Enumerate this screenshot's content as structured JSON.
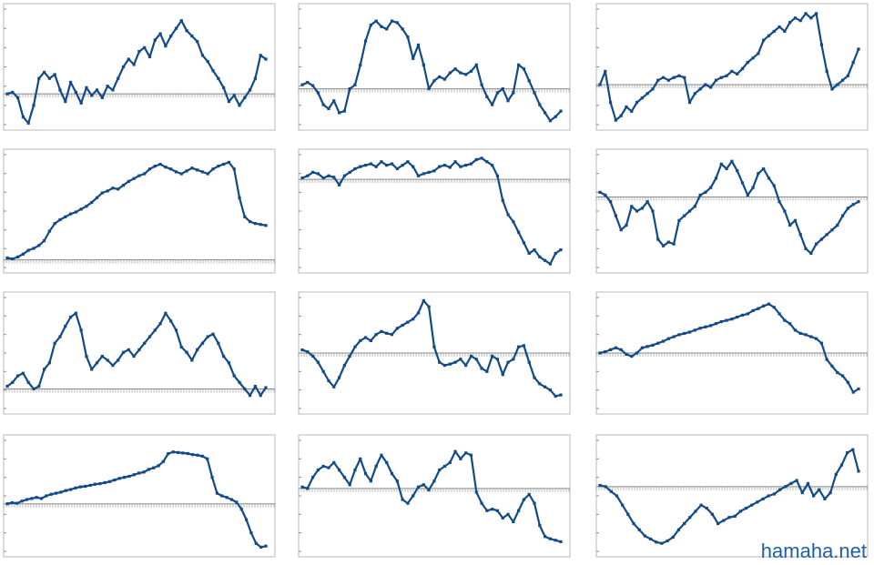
{
  "meta": {
    "watermark": "hamaha.net"
  },
  "style": {
    "line_color": "#124a87",
    "frame_color": "#b8b8b8",
    "axis_color": "#8c8c8c"
  },
  "chart_data": [
    {
      "type": "line",
      "title": "",
      "baseline": 0,
      "ylim": [
        -0.4,
        1.1
      ],
      "values": [
        0,
        0.02,
        -0.05,
        -0.3,
        -0.38,
        -0.15,
        0.2,
        0.28,
        0.2,
        0.25,
        0.05,
        -0.1,
        0.15,
        0.02,
        -0.12,
        0.08,
        -0.02,
        0.05,
        -0.05,
        0.1,
        0.05,
        0.2,
        0.35,
        0.45,
        0.38,
        0.55,
        0.6,
        0.48,
        0.7,
        0.78,
        0.62,
        0.75,
        0.85,
        0.95,
        0.82,
        0.75,
        0.68,
        0.5,
        0.42,
        0.3,
        0.2,
        0.08,
        -0.1,
        -0.02,
        -0.15,
        -0.05,
        0.05,
        0.2,
        0.5,
        0.45
      ]
    },
    {
      "type": "line",
      "title": "",
      "baseline": 0,
      "ylim": [
        -0.45,
        1.0
      ],
      "values": [
        0.05,
        0.08,
        0.04,
        -0.05,
        -0.2,
        -0.25,
        -0.15,
        -0.3,
        -0.28,
        0,
        0.05,
        0.3,
        0.6,
        0.8,
        0.85,
        0.78,
        0.75,
        0.85,
        0.83,
        0.75,
        0.65,
        0.38,
        0.55,
        0.3,
        0,
        0.1,
        0.15,
        0.12,
        0.2,
        0.25,
        0.2,
        0.18,
        0.22,
        0.3,
        0.05,
        -0.1,
        -0.2,
        -0.05,
        0,
        -0.15,
        -0.05,
        0.3,
        0.25,
        0.1,
        -0.05,
        -0.2,
        -0.3,
        -0.4,
        -0.35,
        -0.28
      ]
    },
    {
      "type": "line",
      "title": "",
      "baseline": 0,
      "ylim": [
        -0.45,
        0.85
      ],
      "values": [
        0,
        0.15,
        -0.2,
        -0.4,
        -0.35,
        -0.25,
        -0.3,
        -0.2,
        -0.15,
        -0.1,
        -0.05,
        0.05,
        0.08,
        0.05,
        0.08,
        0.1,
        0.08,
        -0.2,
        -0.1,
        -0.05,
        0,
        -0.03,
        0.05,
        0.08,
        0.1,
        0.15,
        0.12,
        0.18,
        0.25,
        0.3,
        0.35,
        0.5,
        0.55,
        0.6,
        0.65,
        0.6,
        0.7,
        0.75,
        0.72,
        0.8,
        0.75,
        0.8,
        0.45,
        0.15,
        -0.05,
        0,
        0.05,
        0.1,
        0.25,
        0.4
      ]
    },
    {
      "type": "line",
      "title": "",
      "baseline": 0,
      "ylim": [
        -0.08,
        1.1
      ],
      "values": [
        0.02,
        0.01,
        0.03,
        0.06,
        0.1,
        0.12,
        0.15,
        0.2,
        0.3,
        0.38,
        0.42,
        0.45,
        0.48,
        0.5,
        0.53,
        0.56,
        0.6,
        0.65,
        0.7,
        0.72,
        0.75,
        0.74,
        0.78,
        0.82,
        0.85,
        0.88,
        0.9,
        0.95,
        0.98,
        1.0,
        0.97,
        0.95,
        0.92,
        0.9,
        0.93,
        0.96,
        0.94,
        0.92,
        0.9,
        0.95,
        0.98,
        1.0,
        1.02,
        0.95,
        0.65,
        0.45,
        0.4,
        0.38,
        0.37,
        0.36
      ]
    },
    {
      "type": "line",
      "title": "",
      "baseline": 0,
      "ylim": [
        -1.25,
        0.35
      ],
      "values": [
        0.02,
        0.05,
        0.1,
        0.08,
        0.02,
        0.05,
        0.03,
        -0.08,
        0.05,
        0.1,
        0.15,
        0.18,
        0.2,
        0.22,
        0.18,
        0.25,
        0.2,
        0.22,
        0.15,
        0.2,
        0.25,
        0.18,
        0.05,
        0.08,
        0.1,
        0.12,
        0.18,
        0.2,
        0.17,
        0.25,
        0.18,
        0.2,
        0.22,
        0.28,
        0.3,
        0.25,
        0.2,
        0.05,
        -0.3,
        -0.5,
        -0.6,
        -0.75,
        -0.9,
        -1.05,
        -1.0,
        -1.1,
        -1.15,
        -1.2,
        -1.05,
        -1.0
      ]
    },
    {
      "type": "line",
      "title": "",
      "baseline": 0,
      "ylim": [
        -0.75,
        0.45
      ],
      "values": [
        0.05,
        0.02,
        -0.05,
        -0.2,
        -0.35,
        -0.3,
        -0.1,
        -0.15,
        -0.12,
        -0.05,
        -0.15,
        -0.45,
        -0.52,
        -0.48,
        -0.5,
        -0.25,
        -0.2,
        -0.15,
        -0.1,
        0.02,
        0.05,
        0.1,
        0.2,
        0.35,
        0.3,
        0.38,
        0.28,
        0.15,
        0.02,
        0.1,
        0.25,
        0.3,
        0.2,
        0.12,
        -0.05,
        -0.15,
        -0.3,
        -0.25,
        -0.4,
        -0.55,
        -0.6,
        -0.5,
        -0.45,
        -0.4,
        -0.35,
        -0.3,
        -0.2,
        -0.12,
        -0.08,
        -0.05
      ]
    },
    {
      "type": "line",
      "title": "",
      "baseline": 0,
      "ylim": [
        -0.15,
        0.7
      ],
      "values": [
        0.02,
        0.05,
        0.1,
        0.12,
        0.05,
        0,
        0.02,
        0.15,
        0.2,
        0.35,
        0.4,
        0.48,
        0.55,
        0.58,
        0.45,
        0.25,
        0.15,
        0.2,
        0.25,
        0.22,
        0.18,
        0.22,
        0.28,
        0.3,
        0.25,
        0.3,
        0.35,
        0.4,
        0.45,
        0.5,
        0.58,
        0.52,
        0.45,
        0.32,
        0.28,
        0.22,
        0.3,
        0.35,
        0.4,
        0.42,
        0.35,
        0.25,
        0.2,
        0.1,
        0.05,
        0,
        -0.05,
        0.02,
        -0.05,
        0.01
      ]
    },
    {
      "type": "line",
      "title": "",
      "baseline": 0,
      "ylim": [
        -0.9,
        0.9
      ],
      "values": [
        0.05,
        0.02,
        -0.05,
        -0.15,
        -0.3,
        -0.45,
        -0.55,
        -0.4,
        -0.2,
        -0.05,
        0.1,
        0.2,
        0.25,
        0.2,
        0.3,
        0.35,
        0.32,
        0.3,
        0.4,
        0.45,
        0.5,
        0.55,
        0.65,
        0.85,
        0.75,
        0.1,
        -0.15,
        -0.2,
        -0.18,
        -0.15,
        -0.1,
        -0.2,
        -0.05,
        -0.1,
        -0.25,
        -0.3,
        -0.05,
        -0.1,
        -0.35,
        -0.15,
        -0.1,
        0.1,
        0.12,
        -0.15,
        -0.4,
        -0.5,
        -0.55,
        -0.6,
        -0.7,
        -0.68
      ]
    },
    {
      "type": "line",
      "title": "",
      "baseline": 0,
      "ylim": [
        -0.85,
        0.85
      ],
      "values": [
        0,
        0.02,
        0.05,
        0.08,
        0.05,
        -0.02,
        -0.05,
        0,
        0.08,
        0.1,
        0.12,
        0.15,
        0.18,
        0.22,
        0.25,
        0.28,
        0.3,
        0.32,
        0.35,
        0.38,
        0.4,
        0.42,
        0.45,
        0.48,
        0.5,
        0.52,
        0.55,
        0.58,
        0.6,
        0.65,
        0.68,
        0.72,
        0.75,
        0.7,
        0.6,
        0.5,
        0.45,
        0.35,
        0.3,
        0.28,
        0.25,
        0.22,
        0.15,
        -0.1,
        -0.2,
        -0.3,
        -0.35,
        -0.45,
        -0.6,
        -0.55
      ]
    },
    {
      "type": "line",
      "title": "",
      "baseline": 0,
      "ylim": [
        -0.9,
        1.2
      ],
      "values": [
        0,
        0.02,
        0.01,
        0.05,
        0.08,
        0.1,
        0.12,
        0.1,
        0.15,
        0.18,
        0.2,
        0.22,
        0.25,
        0.27,
        0.3,
        0.32,
        0.33,
        0.35,
        0.37,
        0.38,
        0.4,
        0.42,
        0.45,
        0.48,
        0.5,
        0.52,
        0.55,
        0.58,
        0.6,
        0.65,
        0.68,
        0.72,
        0.8,
        0.95,
        0.98,
        0.97,
        0.96,
        0.95,
        0.93,
        0.92,
        0.9,
        0.85,
        0.5,
        0.2,
        0.15,
        0.12,
        0.08,
        0.03,
        -0.1,
        -0.3,
        -0.55,
        -0.75,
        -0.82,
        -0.8
      ]
    },
    {
      "type": "line",
      "title": "",
      "baseline": 0,
      "ylim": [
        -0.85,
        0.65
      ],
      "values": [
        0.02,
        0,
        0.15,
        0.25,
        0.3,
        0.28,
        0.35,
        0.25,
        0.15,
        0.05,
        0.25,
        0.4,
        0.2,
        0.1,
        0.3,
        0.45,
        0.35,
        0.2,
        0.1,
        -0.15,
        -0.2,
        -0.1,
        0.02,
        0.05,
        -0.02,
        0.1,
        0.25,
        0.3,
        0.35,
        0.5,
        0.4,
        0.48,
        0.45,
        -0.05,
        -0.2,
        -0.3,
        -0.28,
        -0.3,
        -0.4,
        -0.35,
        -0.45,
        -0.3,
        -0.15,
        -0.08,
        -0.2,
        -0.5,
        -0.65,
        -0.68,
        -0.7,
        -0.72
      ]
    },
    {
      "type": "line",
      "title": "",
      "baseline": 0,
      "ylim": [
        -1.05,
        0.75
      ],
      "values": [
        0.02,
        0,
        -0.08,
        -0.15,
        -0.3,
        -0.45,
        -0.6,
        -0.7,
        -0.8,
        -0.85,
        -0.9,
        -0.92,
        -0.88,
        -0.82,
        -0.7,
        -0.6,
        -0.5,
        -0.4,
        -0.3,
        -0.35,
        -0.45,
        -0.6,
        -0.55,
        -0.5,
        -0.48,
        -0.4,
        -0.35,
        -0.3,
        -0.25,
        -0.2,
        -0.15,
        -0.12,
        -0.05,
        0,
        0.05,
        0.1,
        -0.1,
        0.05,
        -0.15,
        -0.05,
        -0.2,
        -0.1,
        0.2,
        0.35,
        0.55,
        0.6,
        0.25
      ]
    }
  ]
}
